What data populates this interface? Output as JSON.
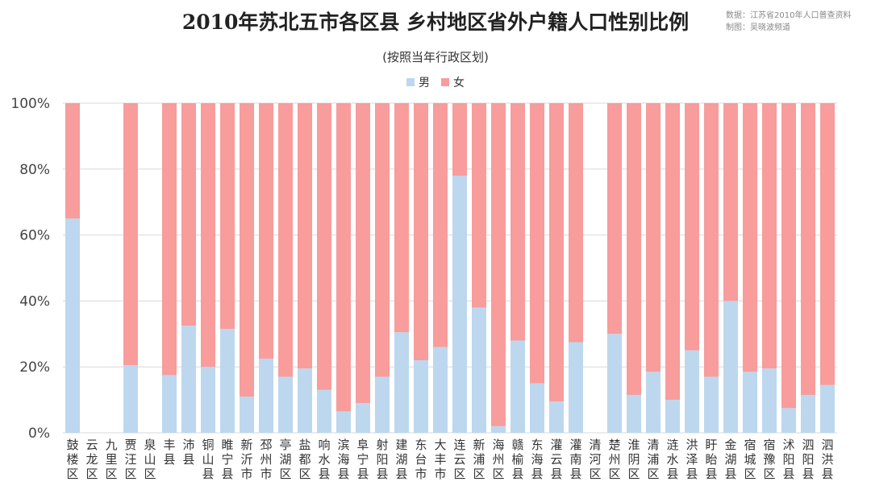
{
  "header": {
    "title": "2010年苏北五市各区县 乡村地区省外户籍人口性别比例",
    "subtitle": "(按照当年行政区划)",
    "source_line1": "数据：江苏省2010年人口普查资料",
    "source_line2": "制图：吴晓波频道"
  },
  "colors": {
    "male": "#bdd7ee",
    "female": "#f89c9c",
    "grid": "#d9d9d9"
  },
  "chart_data": {
    "type": "bar",
    "stacked": true,
    "title": "2010年苏北五市各区县 乡村地区省外户籍人口性别比例",
    "subtitle": "(按照当年行政区划)",
    "ylim": [
      0,
      100
    ],
    "yticks": [
      "0%",
      "20%",
      "40%",
      "60%",
      "80%",
      "100%"
    ],
    "legend_position": "top",
    "grid": true,
    "categories": [
      "鼓楼区",
      "云龙区",
      "九里区",
      "贾汪区",
      "泉山区",
      "丰县",
      "沛县",
      "铜山县",
      "睢宁县",
      "新沂市",
      "邳州市",
      "亭湖区",
      "盐都区",
      "响水县",
      "滨海县",
      "阜宁县",
      "射阳县",
      "建湖县",
      "东台市",
      "大丰市",
      "连云区",
      "新浦区",
      "海州区",
      "赣榆县",
      "东海县",
      "灌云县",
      "灌南县",
      "清河区",
      "楚州区",
      "淮阴区",
      "清浦区",
      "涟水县",
      "洪泽县",
      "盱眙县",
      "金湖县",
      "宿城区",
      "宿豫区",
      "沭阳县",
      "泗阳县",
      "泗洪县"
    ],
    "series": [
      {
        "name": "男",
        "values": [
          65,
          0,
          0,
          20.5,
          0,
          17.5,
          32.5,
          20,
          31.5,
          11,
          22.5,
          17,
          19.5,
          13,
          6.5,
          9,
          17,
          30.5,
          22,
          26,
          78,
          38,
          2,
          28,
          15,
          9.5,
          27.5,
          0,
          30,
          11.5,
          18.5,
          10,
          25,
          17,
          40,
          18.5,
          19.5,
          7.5,
          11.5,
          14.5
        ]
      },
      {
        "name": "女",
        "values": [
          35,
          0,
          0,
          79.5,
          0,
          82.5,
          67.5,
          80,
          68.5,
          89,
          77.5,
          83,
          80.5,
          87,
          93.5,
          91,
          83,
          69.5,
          78,
          74,
          22,
          62,
          98,
          72,
          85,
          90.5,
          72.5,
          0,
          70,
          88.5,
          81.5,
          90,
          75,
          83,
          60,
          81.5,
          80.5,
          92.5,
          88.5,
          85.5
        ]
      }
    ]
  }
}
